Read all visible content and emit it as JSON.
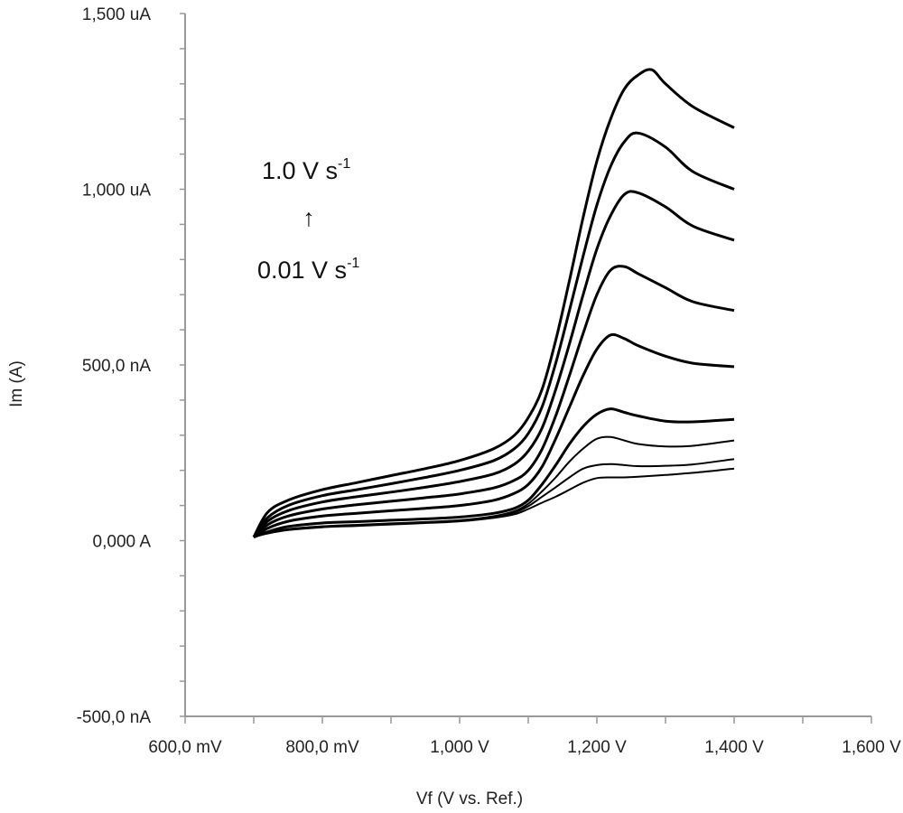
{
  "chart_data": {
    "type": "line",
    "xlabel": "Vf (V vs. Ref.)",
    "ylabel": "Im (A)",
    "xlim": [
      0.6,
      1.6
    ],
    "ylim": [
      -500,
      1500
    ],
    "x_unit": "V",
    "y_unit": "uA",
    "grid": false,
    "x_ticks": [
      0.6,
      0.8,
      1.0,
      1.2,
      1.4,
      1.6
    ],
    "x_tick_labels": [
      "600,0 mV",
      "800,0 mV",
      "1,000 V",
      "1,200 V",
      "1,400 V",
      "1,600 V"
    ],
    "y_ticks": [
      1500,
      1000,
      500,
      0,
      -500
    ],
    "y_tick_labels": [
      "1,500 uA",
      "1,000 uA",
      "500,0 nA",
      "0,000 A",
      "-500,0 nA"
    ],
    "annotations": {
      "top_main": "1.0 V s",
      "top_sup": "-1",
      "arrow": "↑",
      "bottom_main": "0.01 V s",
      "bottom_sup": "-1"
    },
    "series": [
      {
        "x": [
          0.7,
          0.72,
          0.75,
          0.8,
          0.85,
          0.9,
          0.95,
          1.0,
          1.05,
          1.08,
          1.1,
          1.12,
          1.14,
          1.16,
          1.18,
          1.2,
          1.22,
          1.24,
          1.26,
          1.3,
          1.34,
          1.4
        ],
        "y": [
          10,
          20,
          30,
          38,
          42,
          46,
          50,
          55,
          65,
          75,
          90,
          108,
          125,
          145,
          165,
          178,
          180,
          180,
          182,
          187,
          193,
          205
        ]
      },
      {
        "x": [
          0.7,
          0.72,
          0.75,
          0.8,
          0.85,
          0.9,
          0.95,
          1.0,
          1.05,
          1.08,
          1.1,
          1.12,
          1.14,
          1.16,
          1.18,
          1.2,
          1.22,
          1.24,
          1.26,
          1.3,
          1.34,
          1.4
        ],
        "y": [
          10,
          22,
          32,
          40,
          44,
          48,
          52,
          57,
          68,
          80,
          98,
          125,
          152,
          180,
          205,
          215,
          218,
          215,
          212,
          213,
          217,
          232
        ]
      },
      {
        "x": [
          0.7,
          0.72,
          0.75,
          0.8,
          0.85,
          0.9,
          0.95,
          1.0,
          1.05,
          1.08,
          1.1,
          1.12,
          1.14,
          1.16,
          1.18,
          1.2,
          1.22,
          1.24,
          1.26,
          1.3,
          1.34,
          1.4
        ],
        "y": [
          10,
          22,
          33,
          41,
          45,
          49,
          53,
          58,
          70,
          84,
          105,
          140,
          180,
          225,
          262,
          290,
          295,
          285,
          275,
          268,
          270,
          285
        ]
      },
      {
        "x": [
          0.7,
          0.72,
          0.75,
          0.8,
          0.85,
          0.9,
          0.95,
          1.0,
          1.05,
          1.08,
          1.1,
          1.12,
          1.14,
          1.16,
          1.18,
          1.2,
          1.22,
          1.24,
          1.26,
          1.3,
          1.34,
          1.4
        ],
        "y": [
          10,
          25,
          40,
          50,
          54,
          58,
          62,
          67,
          78,
          92,
          115,
          160,
          215,
          275,
          325,
          360,
          375,
          365,
          355,
          340,
          338,
          345
        ]
      },
      {
        "x": [
          0.7,
          0.72,
          0.75,
          0.8,
          0.85,
          0.9,
          0.95,
          1.0,
          1.05,
          1.08,
          1.1,
          1.12,
          1.14,
          1.16,
          1.18,
          1.2,
          1.22,
          1.24,
          1.26,
          1.3,
          1.34,
          1.4
        ],
        "y": [
          10,
          35,
          55,
          70,
          78,
          85,
          92,
          100,
          115,
          135,
          160,
          210,
          290,
          380,
          470,
          545,
          585,
          575,
          555,
          525,
          505,
          495
        ]
      },
      {
        "x": [
          0.7,
          0.72,
          0.75,
          0.8,
          0.85,
          0.9,
          0.95,
          1.0,
          1.05,
          1.08,
          1.1,
          1.12,
          1.14,
          1.16,
          1.18,
          1.2,
          1.22,
          1.24,
          1.26,
          1.3,
          1.34,
          1.4
        ],
        "y": [
          10,
          45,
          70,
          90,
          102,
          112,
          122,
          133,
          150,
          172,
          200,
          260,
          355,
          470,
          590,
          700,
          770,
          780,
          760,
          720,
          680,
          655
        ]
      },
      {
        "x": [
          0.7,
          0.72,
          0.75,
          0.8,
          0.85,
          0.9,
          0.95,
          1.0,
          1.05,
          1.08,
          1.1,
          1.12,
          1.14,
          1.16,
          1.18,
          1.2,
          1.22,
          1.24,
          1.26,
          1.3,
          1.34,
          1.4
        ],
        "y": [
          10,
          55,
          85,
          110,
          125,
          138,
          152,
          168,
          190,
          218,
          255,
          320,
          430,
          560,
          700,
          830,
          925,
          985,
          990,
          950,
          895,
          855
        ]
      },
      {
        "x": [
          0.7,
          0.72,
          0.75,
          0.8,
          0.85,
          0.9,
          0.95,
          1.0,
          1.05,
          1.08,
          1.1,
          1.12,
          1.14,
          1.16,
          1.18,
          1.2,
          1.22,
          1.24,
          1.26,
          1.3,
          1.34,
          1.4
        ],
        "y": [
          10,
          65,
          100,
          128,
          145,
          162,
          180,
          200,
          228,
          262,
          305,
          380,
          505,
          655,
          810,
          955,
          1065,
          1135,
          1160,
          1120,
          1050,
          1000
        ]
      },
      {
        "x": [
          0.7,
          0.72,
          0.75,
          0.8,
          0.85,
          0.9,
          0.95,
          1.0,
          1.05,
          1.08,
          1.1,
          1.12,
          1.14,
          1.16,
          1.18,
          1.2,
          1.22,
          1.24,
          1.26,
          1.28,
          1.3,
          1.34,
          1.4
        ],
        "y": [
          10,
          80,
          115,
          145,
          165,
          185,
          205,
          228,
          262,
          300,
          350,
          430,
          570,
          740,
          920,
          1080,
          1200,
          1285,
          1325,
          1340,
          1300,
          1235,
          1175
        ]
      }
    ]
  }
}
